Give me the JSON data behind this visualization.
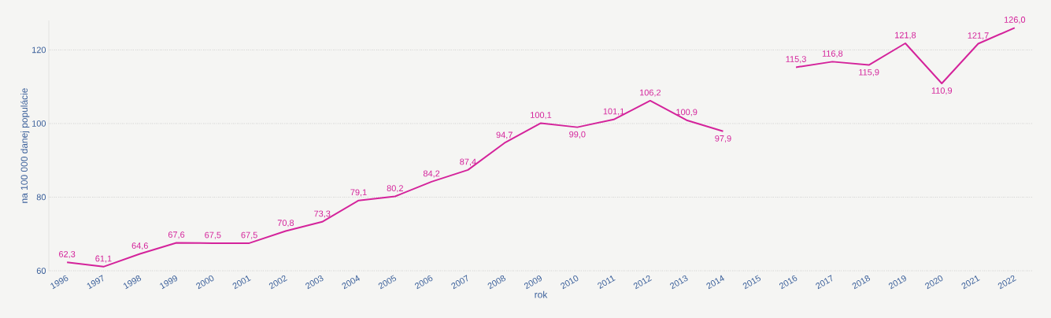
{
  "chart_data": {
    "type": "line",
    "xlabel": "rok",
    "ylabel": "na 100 000 danej populácie",
    "categories": [
      "1996",
      "1997",
      "1998",
      "1999",
      "2000",
      "2001",
      "2002",
      "2003",
      "2004",
      "2005",
      "2006",
      "2007",
      "2008",
      "2009",
      "2010",
      "2011",
      "2012",
      "2013",
      "2014",
      "2015",
      "2016",
      "2017",
      "2018",
      "2019",
      "2020",
      "2021",
      "2022"
    ],
    "values": [
      62.3,
      61.1,
      64.6,
      67.6,
      67.5,
      67.5,
      70.8,
      73.3,
      79.1,
      80.2,
      84.2,
      87.4,
      94.7,
      100.1,
      99.0,
      101.1,
      106.2,
      100.9,
      97.9,
      null,
      115.3,
      116.8,
      115.9,
      121.8,
      110.9,
      121.7,
      126.0
    ],
    "value_labels": [
      "62,3",
      "61,1",
      "64,6",
      "67,6",
      "67,5",
      "67,5",
      "70,8",
      "73,3",
      "79,1",
      "80,2",
      "84,2",
      "87,4",
      "94,7",
      "100,1",
      "99,0",
      "101,1",
      "106,2",
      "100,9",
      "97,9",
      null,
      "115,3",
      "116,8",
      "115,9",
      "121,8",
      "110,9",
      "121,7",
      "126,0"
    ],
    "color": "#d4239b",
    "ylim": [
      60,
      128
    ],
    "yticks": [
      60,
      80,
      100,
      120
    ],
    "grid": "y"
  }
}
